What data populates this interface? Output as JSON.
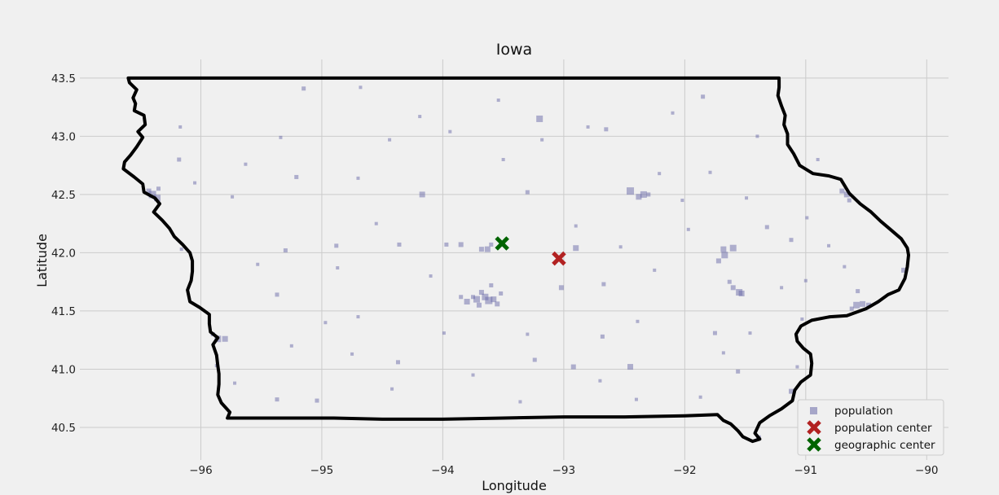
{
  "chart_data": {
    "type": "scatter",
    "title": "Iowa",
    "xlabel": "Longitude",
    "ylabel": "Latitude",
    "xlim": [
      -97.0,
      -89.82
    ],
    "ylim": [
      40.22,
      43.66
    ],
    "xticks": [
      -96,
      -95,
      -94,
      -93,
      -92,
      -91,
      -90
    ],
    "xtick_labels": [
      "−96",
      "−95",
      "−94",
      "−93",
      "−92",
      "−91",
      "−90"
    ],
    "yticks": [
      40.5,
      41.0,
      41.5,
      42.0,
      42.5,
      43.0,
      43.5
    ],
    "ytick_labels": [
      "40.5",
      "41.0",
      "41.5",
      "42.0",
      "42.5",
      "43.0",
      "43.5"
    ],
    "grid": true,
    "legend_position": "lower-right",
    "colors": {
      "population": "#6a6aa8",
      "population_center": "#b22222",
      "geographic_center": "#006400",
      "boundary": "#000000",
      "grid": "#cbcbcb",
      "background": "#f0f0f0"
    },
    "series": [
      {
        "name": "population",
        "marker": "square",
        "points": [
          [
            -93.62,
            41.59,
            9
          ],
          [
            -93.72,
            41.6,
            8
          ],
          [
            -93.8,
            41.58,
            7
          ],
          [
            -93.58,
            41.6,
            7
          ],
          [
            -93.65,
            41.62,
            8
          ],
          [
            -93.68,
            41.66,
            6
          ],
          [
            -93.6,
            41.72,
            5
          ],
          [
            -93.55,
            41.56,
            6
          ],
          [
            -93.75,
            41.62,
            5
          ],
          [
            -93.52,
            41.65,
            5
          ],
          [
            -93.85,
            41.62,
            5
          ],
          [
            -93.7,
            41.55,
            6
          ],
          [
            -93.63,
            42.03,
            7
          ],
          [
            -93.68,
            42.03,
            6
          ],
          [
            -93.6,
            42.07,
            5
          ],
          [
            -93.85,
            42.07,
            6
          ],
          [
            -91.67,
            41.98,
            8
          ],
          [
            -91.6,
            42.04,
            8
          ],
          [
            -91.68,
            42.03,
            7
          ],
          [
            -91.72,
            41.93,
            6
          ],
          [
            -91.55,
            41.66,
            8
          ],
          [
            -91.53,
            41.65,
            7
          ],
          [
            -91.6,
            41.7,
            6
          ],
          [
            -91.63,
            41.75,
            5
          ],
          [
            -90.58,
            41.55,
            8
          ],
          [
            -90.53,
            41.56,
            7
          ],
          [
            -90.48,
            41.55,
            6
          ],
          [
            -90.62,
            41.52,
            5
          ],
          [
            -90.57,
            41.67,
            5
          ],
          [
            -90.66,
            42.5,
            7
          ],
          [
            -90.7,
            42.53,
            6
          ],
          [
            -90.64,
            42.45,
            5
          ],
          [
            -92.34,
            42.5,
            8
          ],
          [
            -92.45,
            42.53,
            9
          ],
          [
            -92.38,
            42.48,
            7
          ],
          [
            -92.3,
            42.5,
            5
          ],
          [
            -96.4,
            42.5,
            9
          ],
          [
            -96.36,
            42.47,
            8
          ],
          [
            -96.43,
            42.53,
            6
          ],
          [
            -96.35,
            42.55,
            5
          ],
          [
            -95.86,
            41.26,
            8
          ],
          [
            -95.8,
            41.26,
            7
          ],
          [
            -95.9,
            41.3,
            5
          ],
          [
            -94.17,
            42.5,
            7
          ],
          [
            -93.2,
            43.15,
            8
          ],
          [
            -92.9,
            42.04,
            7
          ],
          [
            -93.02,
            41.7,
            6
          ],
          [
            -92.92,
            41.02,
            6
          ],
          [
            -92.45,
            41.02,
            7
          ],
          [
            -91.12,
            40.81,
            6
          ],
          [
            -91.39,
            40.41,
            6
          ],
          [
            -90.19,
            41.85,
            6
          ],
          [
            -91.56,
            40.98,
            5
          ],
          [
            -92.68,
            41.28,
            5
          ],
          [
            -91.75,
            41.31,
            5
          ],
          [
            -94.37,
            41.06,
            5
          ],
          [
            -95.04,
            40.73,
            5
          ],
          [
            -95.37,
            40.74,
            5
          ],
          [
            -95.37,
            41.64,
            5
          ],
          [
            -94.36,
            42.07,
            5
          ],
          [
            -94.88,
            42.06,
            5
          ],
          [
            -94.7,
            42.64,
            4
          ],
          [
            -95.21,
            42.65,
            5
          ],
          [
            -95.3,
            42.02,
            5
          ],
          [
            -93.97,
            42.07,
            5
          ],
          [
            -93.3,
            42.52,
            5
          ],
          [
            -93.24,
            41.08,
            5
          ],
          [
            -92.39,
            41.41,
            4
          ],
          [
            -92.67,
            41.73,
            5
          ],
          [
            -91.97,
            42.2,
            4
          ],
          [
            -91.85,
            43.34,
            5
          ],
          [
            -93.54,
            43.31,
            4
          ],
          [
            -93.94,
            43.04,
            4
          ],
          [
            -95.15,
            43.41,
            5
          ],
          [
            -96.18,
            42.8,
            5
          ],
          [
            -96.16,
            42.03,
            4
          ],
          [
            -95.34,
            42.99,
            4
          ],
          [
            -94.44,
            42.97,
            4
          ],
          [
            -92.65,
            43.06,
            5
          ],
          [
            -92.8,
            43.08,
            4
          ],
          [
            -91.79,
            42.69,
            4
          ],
          [
            -92.21,
            42.68,
            4
          ],
          [
            -91.32,
            42.22,
            5
          ],
          [
            -91.12,
            42.11,
            5
          ],
          [
            -91.0,
            41.76,
            4
          ],
          [
            -90.81,
            42.06,
            4
          ],
          [
            -90.99,
            42.3,
            4
          ],
          [
            -90.68,
            41.88,
            4
          ],
          [
            -91.46,
            41.31,
            4
          ],
          [
            -91.03,
            41.43,
            4
          ],
          [
            -91.68,
            41.14,
            4
          ],
          [
            -94.97,
            41.4,
            4
          ],
          [
            -95.87,
            41.03,
            4
          ],
          [
            -95.72,
            40.88,
            4
          ],
          [
            -95.53,
            41.9,
            4
          ],
          [
            -94.87,
            41.87,
            4
          ],
          [
            -94.75,
            41.13,
            4
          ],
          [
            -94.42,
            40.83,
            4
          ],
          [
            -93.99,
            41.31,
            4
          ],
          [
            -93.36,
            40.72,
            4
          ],
          [
            -92.4,
            40.74,
            4
          ],
          [
            -91.87,
            40.76,
            4
          ],
          [
            -91.07,
            41.02,
            4
          ],
          [
            -93.18,
            42.97,
            4
          ],
          [
            -92.53,
            42.05,
            4
          ],
          [
            -92.02,
            42.45,
            4
          ],
          [
            -91.49,
            42.47,
            4
          ],
          [
            -94.19,
            43.17,
            4
          ],
          [
            -94.68,
            43.42,
            4
          ],
          [
            -96.17,
            43.08,
            4
          ],
          [
            -95.63,
            42.76,
            4
          ],
          [
            -95.74,
            42.48,
            4
          ],
          [
            -94.55,
            42.25,
            4
          ],
          [
            -92.9,
            42.23,
            4
          ],
          [
            -92.25,
            41.85,
            4
          ],
          [
            -92.7,
            40.9,
            4
          ],
          [
            -93.75,
            40.95,
            4
          ],
          [
            -94.7,
            41.45,
            4
          ],
          [
            -95.25,
            41.2,
            4
          ],
          [
            -96.05,
            42.6,
            4
          ],
          [
            -93.5,
            42.8,
            4
          ],
          [
            -92.1,
            43.2,
            4
          ],
          [
            -91.4,
            43.0,
            4
          ],
          [
            -90.9,
            42.8,
            4
          ],
          [
            -91.2,
            41.7,
            4
          ],
          [
            -93.3,
            41.3,
            4
          ],
          [
            -94.1,
            41.8,
            4
          ]
        ]
      },
      {
        "name": "population center",
        "marker": "x",
        "points": [
          [
            -93.04,
            41.95
          ]
        ]
      },
      {
        "name": "geographic center",
        "marker": "x",
        "points": [
          [
            -93.51,
            42.08
          ]
        ]
      }
    ],
    "legend": [
      "population",
      "population center",
      "geographic center"
    ],
    "boundary_lon_lat": [
      [
        -96.6,
        43.5
      ],
      [
        -96.59,
        43.46
      ],
      [
        -96.53,
        43.4
      ],
      [
        -96.56,
        43.33
      ],
      [
        -96.54,
        43.28
      ],
      [
        -96.55,
        43.22
      ],
      [
        -96.47,
        43.18
      ],
      [
        -96.46,
        43.1
      ],
      [
        -96.52,
        43.04
      ],
      [
        -96.48,
        42.99
      ],
      [
        -96.53,
        42.91
      ],
      [
        -96.58,
        42.84
      ],
      [
        -96.63,
        42.78
      ],
      [
        -96.64,
        42.72
      ],
      [
        -96.55,
        42.65
      ],
      [
        -96.48,
        42.59
      ],
      [
        -96.47,
        42.52
      ],
      [
        -96.38,
        42.47
      ],
      [
        -96.34,
        42.42
      ],
      [
        -96.39,
        42.35
      ],
      [
        -96.32,
        42.28
      ],
      [
        -96.26,
        42.21
      ],
      [
        -96.22,
        42.14
      ],
      [
        -96.15,
        42.07
      ],
      [
        -96.09,
        42.0
      ],
      [
        -96.07,
        41.93
      ],
      [
        -96.07,
        41.84
      ],
      [
        -96.08,
        41.76
      ],
      [
        -96.11,
        41.68
      ],
      [
        -96.09,
        41.58
      ],
      [
        -96.01,
        41.53
      ],
      [
        -95.93,
        41.47
      ],
      [
        -95.93,
        41.39
      ],
      [
        -95.92,
        41.32
      ],
      [
        -95.86,
        41.27
      ],
      [
        -95.9,
        41.21
      ],
      [
        -95.87,
        41.12
      ],
      [
        -95.86,
        41.03
      ],
      [
        -95.85,
        40.96
      ],
      [
        -95.85,
        40.87
      ],
      [
        -95.86,
        40.78
      ],
      [
        -95.83,
        40.71
      ],
      [
        -95.76,
        40.63
      ],
      [
        -95.78,
        40.58
      ],
      [
        -95.4,
        40.58
      ],
      [
        -94.9,
        40.58
      ],
      [
        -94.5,
        40.57
      ],
      [
        -94.0,
        40.57
      ],
      [
        -93.5,
        40.58
      ],
      [
        -93.0,
        40.59
      ],
      [
        -92.5,
        40.59
      ],
      [
        -92.0,
        40.6
      ],
      [
        -91.73,
        40.61
      ],
      [
        -91.68,
        40.56
      ],
      [
        -91.62,
        40.53
      ],
      [
        -91.56,
        40.47
      ],
      [
        -91.52,
        40.42
      ],
      [
        -91.44,
        40.38
      ],
      [
        -91.38,
        40.4
      ],
      [
        -91.42,
        40.45
      ],
      [
        -91.38,
        40.54
      ],
      [
        -91.3,
        40.6
      ],
      [
        -91.2,
        40.66
      ],
      [
        -91.11,
        40.73
      ],
      [
        -91.09,
        40.82
      ],
      [
        -91.04,
        40.89
      ],
      [
        -90.96,
        40.95
      ],
      [
        -90.95,
        41.05
      ],
      [
        -90.96,
        41.13
      ],
      [
        -91.02,
        41.18
      ],
      [
        -91.07,
        41.24
      ],
      [
        -91.08,
        41.3
      ],
      [
        -91.04,
        41.37
      ],
      [
        -90.95,
        41.42
      ],
      [
        -90.8,
        41.45
      ],
      [
        -90.66,
        41.46
      ],
      [
        -90.5,
        41.52
      ],
      [
        -90.4,
        41.58
      ],
      [
        -90.32,
        41.64
      ],
      [
        -90.23,
        41.68
      ],
      [
        -90.18,
        41.78
      ],
      [
        -90.16,
        41.88
      ],
      [
        -90.15,
        41.98
      ],
      [
        -90.16,
        42.04
      ],
      [
        -90.21,
        42.12
      ],
      [
        -90.3,
        42.2
      ],
      [
        -90.38,
        42.27
      ],
      [
        -90.46,
        42.35
      ],
      [
        -90.55,
        42.42
      ],
      [
        -90.64,
        42.51
      ],
      [
        -90.71,
        42.63
      ],
      [
        -90.81,
        42.66
      ],
      [
        -90.94,
        42.68
      ],
      [
        -91.05,
        42.75
      ],
      [
        -91.1,
        42.85
      ],
      [
        -91.15,
        42.93
      ],
      [
        -91.15,
        43.02
      ],
      [
        -91.18,
        43.1
      ],
      [
        -91.17,
        43.18
      ],
      [
        -91.2,
        43.26
      ],
      [
        -91.23,
        43.35
      ],
      [
        -91.22,
        43.42
      ],
      [
        -91.22,
        43.5
      ],
      [
        -91.8,
        43.5
      ],
      [
        -92.5,
        43.5
      ],
      [
        -93.0,
        43.5
      ],
      [
        -93.5,
        43.5
      ],
      [
        -94.0,
        43.5
      ],
      [
        -94.5,
        43.5
      ],
      [
        -95.0,
        43.5
      ],
      [
        -95.5,
        43.5
      ],
      [
        -96.0,
        43.5
      ],
      [
        -96.6,
        43.5
      ]
    ]
  }
}
